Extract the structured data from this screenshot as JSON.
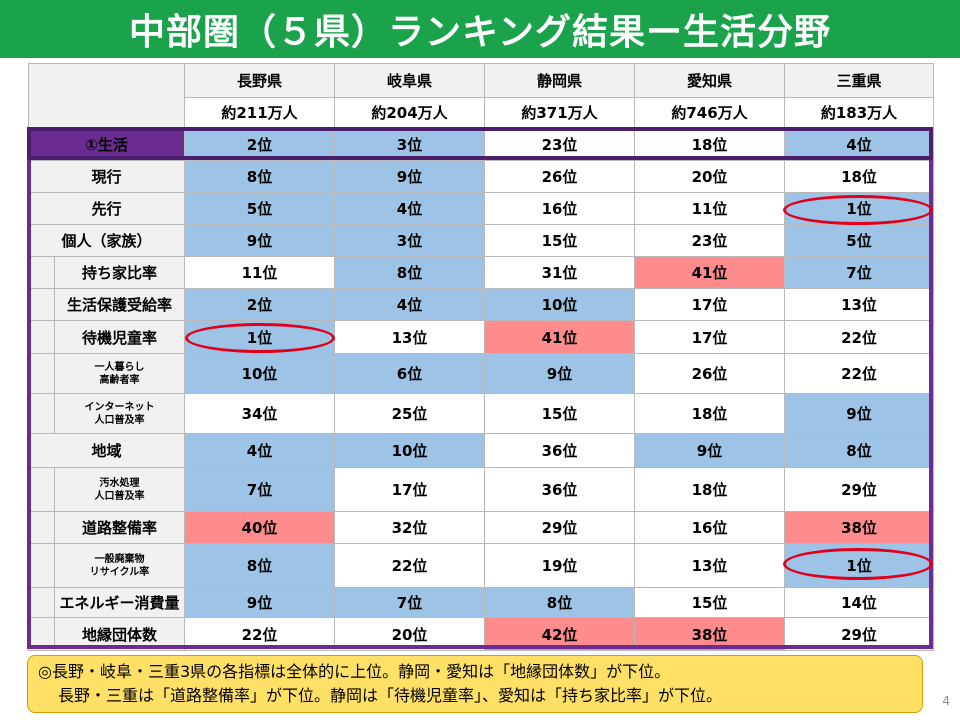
{
  "title": "中部圏（５県）ランキング結果ー生活分野",
  "prefectures": [
    "長野県",
    "岐阜県",
    "静岡県",
    "愛知県",
    "三重県"
  ],
  "populations": [
    "約211万人",
    "約204万人",
    "約371万人",
    "約746万人",
    "約183万人"
  ],
  "rows": [
    {
      "label": "①生活",
      "kind": "section",
      "values": [
        "2位",
        "3位",
        "23位",
        "18位",
        "4位"
      ],
      "colors": [
        "blue",
        "blue",
        "white",
        "white",
        "blue"
      ]
    },
    {
      "label": "現行",
      "kind": "sub",
      "values": [
        "8位",
        "9位",
        "26位",
        "20位",
        "18位"
      ],
      "colors": [
        "blue",
        "blue",
        "white",
        "white",
        "white"
      ]
    },
    {
      "label": "先行",
      "kind": "sub",
      "values": [
        "5位",
        "4位",
        "16位",
        "11位",
        "1位"
      ],
      "colors": [
        "blue",
        "blue",
        "white",
        "white",
        "blue"
      ]
    },
    {
      "label": "個人（家族）",
      "kind": "group",
      "values": [
        "9位",
        "3位",
        "15位",
        "23位",
        "5位"
      ],
      "colors": [
        "blue",
        "blue",
        "white",
        "white",
        "blue"
      ]
    },
    {
      "label": "持ち家比率",
      "kind": "item",
      "values": [
        "11位",
        "8位",
        "31位",
        "41位",
        "7位"
      ],
      "colors": [
        "white",
        "blue",
        "white",
        "red",
        "blue"
      ]
    },
    {
      "label": "生活保護受給率",
      "kind": "item",
      "values": [
        "2位",
        "4位",
        "10位",
        "17位",
        "13位"
      ],
      "colors": [
        "blue",
        "blue",
        "blue",
        "white",
        "white"
      ]
    },
    {
      "label": "待機児童率",
      "kind": "item",
      "values": [
        "1位",
        "13位",
        "41位",
        "17位",
        "22位"
      ],
      "colors": [
        "blue",
        "white",
        "red",
        "white",
        "white"
      ]
    },
    {
      "label": "一人暮らし高齢者率",
      "kind": "item2",
      "values": [
        "10位",
        "6位",
        "9位",
        "26位",
        "22位"
      ],
      "colors": [
        "blue",
        "blue",
        "blue",
        "white",
        "white"
      ]
    },
    {
      "label": "インターネット人口普及率",
      "kind": "item2",
      "values": [
        "34位",
        "25位",
        "15位",
        "18位",
        "9位"
      ],
      "colors": [
        "white",
        "white",
        "white",
        "white",
        "blue"
      ]
    },
    {
      "label": "地域",
      "kind": "group",
      "values": [
        "4位",
        "10位",
        "36位",
        "9位",
        "8位"
      ],
      "colors": [
        "blue",
        "blue",
        "white",
        "blue",
        "blue"
      ]
    },
    {
      "label": "汚水処理人口普及率",
      "kind": "item2",
      "values": [
        "7位",
        "17位",
        "36位",
        "18位",
        "29位"
      ],
      "colors": [
        "blue",
        "white",
        "white",
        "white",
        "white"
      ]
    },
    {
      "label": "道路整備率",
      "kind": "item",
      "values": [
        "40位",
        "32位",
        "29位",
        "16位",
        "38位"
      ],
      "colors": [
        "red",
        "white",
        "white",
        "white",
        "red"
      ]
    },
    {
      "label": "一般廃棄物リサイクル率",
      "kind": "item2",
      "values": [
        "8位",
        "22位",
        "19位",
        "13位",
        "1位"
      ],
      "colors": [
        "blue",
        "white",
        "white",
        "white",
        "blue"
      ]
    },
    {
      "label": "エネルギー消費量",
      "kind": "item",
      "values": [
        "9位",
        "7位",
        "8位",
        "15位",
        "14位"
      ],
      "colors": [
        "blue",
        "blue",
        "blue",
        "white",
        "white"
      ]
    },
    {
      "label": "地縁団体数",
      "kind": "item",
      "values": [
        "22位",
        "20位",
        "42位",
        "38位",
        "29位"
      ],
      "colors": [
        "white",
        "white",
        "red",
        "red",
        "white"
      ]
    }
  ],
  "item2_lines": {
    "一人暮らし高齢者率": [
      "一人暮らし",
      "高齢者率"
    ],
    "インターネット人口普及率": [
      "インターネット",
      "人口普及率"
    ],
    "汚水処理人口普及率": [
      "汚水処理",
      "人口普及率"
    ],
    "一般廃棄物リサイクル率": [
      "一般廃棄物",
      "リサイクル率"
    ]
  },
  "note": {
    "line1": "◎長野・岐阜・三重3県の各指標は全体的に上位。静岡・愛知は「地縁団体数」が下位。",
    "line2": "長野・三重は「道路整備率」が下位。静岡は「待機児童率」、愛知は「持ち家比率」が下位。"
  },
  "page_number": "4",
  "colors": {
    "title_bg": "#1aa34a",
    "section_purple": "#6a2c91",
    "good_blue": "#9dc3e6",
    "bad_red": "#ff8c8c",
    "note_yellow": "#ffe066",
    "circle_red": "#e0001b"
  }
}
